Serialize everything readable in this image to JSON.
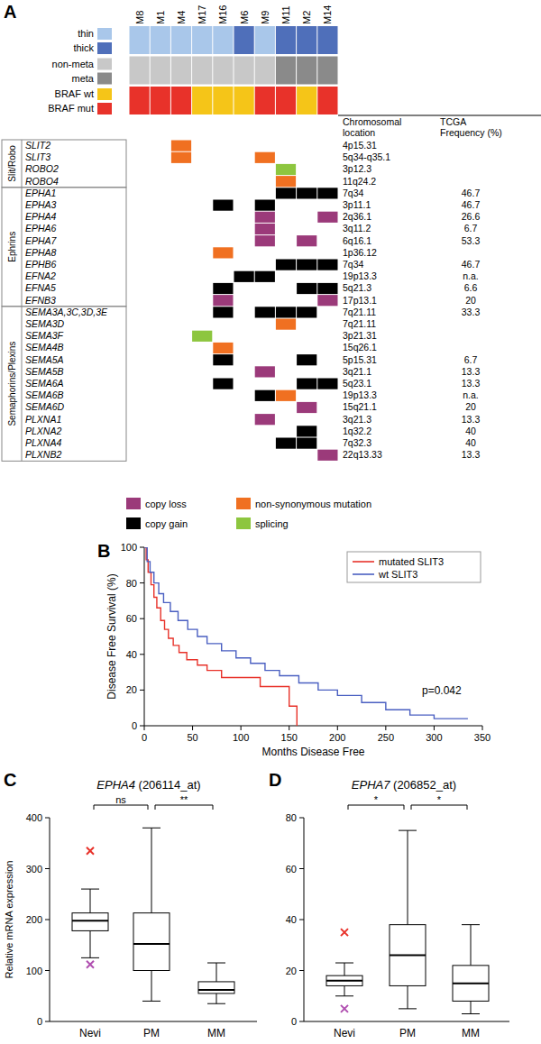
{
  "chart_data": [
    {
      "type": "oncoprint",
      "panel": "A",
      "samples": [
        "M8",
        "M1",
        "M4",
        "M17",
        "M16",
        "M6",
        "M9",
        "M11",
        "M2",
        "M14"
      ],
      "tracks": [
        {
          "labels": [
            "thin",
            "thick"
          ],
          "colors": [
            "#a9c7ea",
            "#4f6fba"
          ],
          "values": [
            0,
            0,
            0,
            0,
            0,
            1,
            0,
            1,
            1,
            1
          ]
        },
        {
          "labels": [
            "non-meta",
            "meta"
          ],
          "colors": [
            "#c8c8c8",
            "#8a8a8a"
          ],
          "values": [
            0,
            0,
            0,
            0,
            0,
            0,
            0,
            1,
            1,
            1
          ]
        },
        {
          "labels": [
            "BRAF wt",
            "BRAF mut"
          ],
          "colors": [
            "#f5c518",
            "#e8322a"
          ],
          "values": [
            1,
            1,
            1,
            0,
            0,
            0,
            1,
            1,
            0,
            1
          ]
        }
      ],
      "columns": [
        "Chromosomal location",
        "TCGA Frequency (%)"
      ],
      "legend_items": [
        {
          "label": "copy loss",
          "color": "#9b3a7a"
        },
        {
          "label": "non-synonymous mutation",
          "color": "#f07021"
        },
        {
          "label": "copy gain",
          "color": "#000000"
        },
        {
          "label": "splicing",
          "color": "#8dc63f"
        }
      ],
      "groups": [
        {
          "name": "Slit/Robo",
          "genes": [
            {
              "name": "SLIT2",
              "location": "4p15.31",
              "frequency": null,
              "cells": [
                [
                  2,
                  1
                ]
              ]
            },
            {
              "name": "SLIT3",
              "location": "5q34-q35.1",
              "frequency": null,
              "cells": [
                [
                  2,
                  1
                ],
                [
                  6,
                  1
                ]
              ]
            },
            {
              "name": "ROBO2",
              "location": "3p12.3",
              "frequency": null,
              "cells": [
                [
                  7,
                  3
                ]
              ]
            },
            {
              "name": "ROBO4",
              "location": "11q24.2",
              "frequency": null,
              "cells": [
                [
                  7,
                  1
                ]
              ]
            }
          ]
        },
        {
          "name": "Ephrins",
          "genes": [
            {
              "name": "EPHA1",
              "location": "7q34",
              "frequency": 46.7,
              "cells": [
                [
                  7,
                  2
                ],
                [
                  8,
                  2
                ],
                [
                  9,
                  2
                ]
              ]
            },
            {
              "name": "EPHA3",
              "location": "3p11.1",
              "frequency": 46.7,
              "cells": [
                [
                  4,
                  2
                ],
                [
                  6,
                  2
                ]
              ]
            },
            {
              "name": "EPHA4",
              "location": "2q36.1",
              "frequency": 26.6,
              "cells": [
                [
                  6,
                  0
                ],
                [
                  9,
                  0
                ]
              ]
            },
            {
              "name": "EPHA6",
              "location": "3q11.2",
              "frequency": 6.7,
              "cells": [
                [
                  6,
                  0
                ]
              ]
            },
            {
              "name": "EPHA7",
              "location": "6q16.1",
              "frequency": 53.3,
              "cells": [
                [
                  6,
                  0
                ],
                [
                  8,
                  0
                ]
              ]
            },
            {
              "name": "EPHA8",
              "location": "1p36.12",
              "frequency": null,
              "cells": [
                [
                  4,
                  1
                ]
              ]
            },
            {
              "name": "EPHB6",
              "location": "7q34",
              "frequency": 46.7,
              "cells": [
                [
                  7,
                  2
                ],
                [
                  8,
                  2
                ],
                [
                  9,
                  2
                ]
              ]
            },
            {
              "name": "EFNA2",
              "location": "19p13.3",
              "frequency": "n.a.",
              "cells": [
                [
                  5,
                  2
                ],
                [
                  6,
                  2
                ]
              ]
            },
            {
              "name": "EFNA5",
              "location": "5q21.3",
              "frequency": 6.6,
              "cells": [
                [
                  4,
                  2
                ],
                [
                  8,
                  2
                ],
                [
                  9,
                  2
                ]
              ]
            },
            {
              "name": "EFNB3",
              "location": "17p13.1",
              "frequency": 20,
              "cells": [
                [
                  4,
                  0
                ],
                [
                  9,
                  0
                ]
              ]
            }
          ]
        },
        {
          "name": "Semaphorins/Plexins",
          "genes": [
            {
              "name": "SEMA3A,3C,3D,3E",
              "location": "7q21.11",
              "frequency": 33.3,
              "cells": [
                [
                  4,
                  2
                ],
                [
                  6,
                  2
                ],
                [
                  7,
                  2
                ],
                [
                  8,
                  2
                ]
              ]
            },
            {
              "name": "SEMA3D",
              "location": "7q21.11",
              "frequency": null,
              "cells": [
                [
                  7,
                  1
                ]
              ]
            },
            {
              "name": "SEMA3F",
              "location": "3p21.31",
              "frequency": null,
              "cells": [
                [
                  3,
                  3
                ]
              ]
            },
            {
              "name": "SEMA4B",
              "location": "15q26.1",
              "frequency": null,
              "cells": [
                [
                  4,
                  1
                ]
              ]
            },
            {
              "name": "SEMA5A",
              "location": "5p15.31",
              "frequency": 6.7,
              "cells": [
                [
                  4,
                  2
                ],
                [
                  8,
                  2
                ]
              ]
            },
            {
              "name": "SEMA5B",
              "location": "3q21.1",
              "frequency": 13.3,
              "cells": [
                [
                  6,
                  0
                ]
              ]
            },
            {
              "name": "SEMA6A",
              "location": "5q23.1",
              "frequency": 13.3,
              "cells": [
                [
                  4,
                  2
                ],
                [
                  8,
                  2
                ],
                [
                  9,
                  2
                ]
              ]
            },
            {
              "name": "SEMA6B",
              "location": "19p13.3",
              "frequency": "n.a.",
              "cells": [
                [
                  6,
                  2
                ],
                [
                  7,
                  1
                ]
              ]
            },
            {
              "name": "SEMA6D",
              "location": "15q21.1",
              "frequency": 20,
              "cells": [
                [
                  8,
                  0
                ]
              ]
            },
            {
              "name": "PLXNA1",
              "location": "3q21.3",
              "frequency": 13.3,
              "cells": [
                [
                  6,
                  0
                ]
              ]
            },
            {
              "name": "PLXNA2",
              "location": "1q32.2",
              "frequency": 40,
              "cells": [
                [
                  8,
                  2
                ]
              ]
            },
            {
              "name": "PLXNA4",
              "location": "7q32.3",
              "frequency": 40,
              "cells": [
                [
                  7,
                  2
                ],
                [
                  8,
                  2
                ]
              ]
            },
            {
              "name": "PLXNB2",
              "location": "22q13.33",
              "frequency": 13.3,
              "cells": [
                [
                  9,
                  0
                ]
              ]
            }
          ]
        }
      ]
    },
    {
      "type": "line",
      "panel": "B",
      "x_label": "Months Disease Free",
      "y_label": "Disease Free Survival (%)",
      "annotation": "p=0.042",
      "legend": "top-right",
      "xlim": [
        0,
        350
      ],
      "xticks": [
        0,
        50,
        100,
        150,
        200,
        250,
        300,
        350
      ],
      "ylim": [
        0,
        100
      ],
      "yticks": [
        0,
        20,
        40,
        60,
        80,
        100
      ],
      "series": [
        {
          "name": "mutated SLIT3",
          "color": "#e8322a",
          "line_style": "solid",
          "x": [
            0,
            2,
            2,
            4,
            4,
            7,
            7,
            10,
            10,
            13,
            13,
            17,
            17,
            21,
            21,
            25,
            25,
            30,
            30,
            36,
            36,
            44,
            44,
            55,
            55,
            65,
            65,
            80,
            80,
            120,
            120,
            150,
            150,
            158,
            158
          ],
          "values": [
            100,
            100,
            93,
            93,
            86,
            86,
            79,
            79,
            72,
            72,
            66,
            66,
            59,
            59,
            54,
            54,
            49,
            49,
            45,
            45,
            41,
            41,
            37,
            37,
            34,
            34,
            31,
            31,
            27,
            27,
            22,
            22,
            11,
            11,
            0
          ]
        },
        {
          "name": "wt SLIT3",
          "color": "#4a5fc1",
          "line_style": "solid",
          "x": [
            0,
            3,
            3,
            6,
            6,
            10,
            10,
            15,
            15,
            20,
            20,
            27,
            27,
            35,
            35,
            45,
            45,
            55,
            55,
            65,
            65,
            80,
            80,
            95,
            95,
            110,
            110,
            125,
            125,
            140,
            140,
            160,
            160,
            180,
            180,
            200,
            200,
            225,
            225,
            250,
            250,
            275,
            275,
            300,
            300,
            335
          ],
          "values": [
            100,
            100,
            92,
            92,
            86,
            86,
            80,
            80,
            74,
            74,
            69,
            69,
            64,
            64,
            59,
            59,
            54,
            54,
            50,
            50,
            46,
            46,
            42,
            42,
            38,
            38,
            35,
            35,
            31,
            31,
            28,
            28,
            24,
            24,
            20,
            20,
            17,
            17,
            13,
            13,
            9,
            9,
            6,
            6,
            4,
            4
          ]
        }
      ]
    },
    {
      "type": "box",
      "panel": "C",
      "title": "EPHA4 (206114_at)",
      "y_label": "Relative mRNA expression",
      "categories": [
        "Nevi",
        "PM",
        "MM"
      ],
      "boxes": [
        {
          "min": 125,
          "q1": 178,
          "median": 198,
          "q3": 213,
          "max": 260,
          "outliers": [
            335,
            112
          ]
        },
        {
          "min": 40,
          "q1": 100,
          "median": 152,
          "q3": 213,
          "max": 380,
          "outliers": []
        },
        {
          "min": 35,
          "q1": 55,
          "median": 62,
          "q3": 78,
          "max": 115,
          "outliers": []
        }
      ],
      "ylim": [
        0,
        400
      ],
      "yticks": [
        0,
        100,
        200,
        300,
        400
      ],
      "comparisons": [
        {
          "from": 0,
          "to": 1,
          "label": "ns"
        },
        {
          "from": 1,
          "to": 2,
          "label": "**"
        }
      ]
    },
    {
      "type": "box",
      "panel": "D",
      "title": "EPHA7 (206852_at)",
      "categories": [
        "Nevi",
        "PM",
        "MM"
      ],
      "boxes": [
        {
          "min": 10,
          "q1": 14,
          "median": 16,
          "q3": 18,
          "max": 23,
          "outliers": [
            35,
            5
          ]
        },
        {
          "min": 5,
          "q1": 14,
          "median": 26,
          "q3": 38,
          "max": 75,
          "outliers": []
        },
        {
          "min": 3,
          "q1": 8,
          "median": 15,
          "q3": 22,
          "max": 38,
          "outliers": []
        }
      ],
      "ylim": [
        0,
        80
      ],
      "yticks": [
        0,
        20,
        40,
        60,
        80
      ],
      "comparisons": [
        {
          "from": 0,
          "to": 1,
          "label": "*"
        },
        {
          "from": 1,
          "to": 2,
          "label": "*"
        }
      ]
    }
  ]
}
